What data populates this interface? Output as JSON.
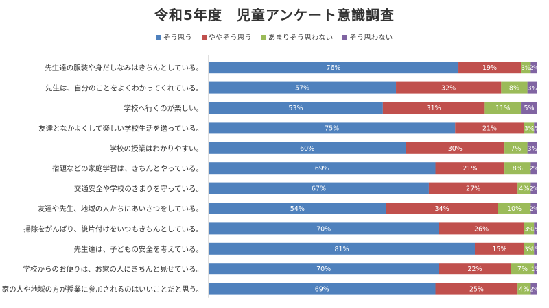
{
  "chart_data": {
    "type": "bar",
    "orientation": "horizontal",
    "stacked": true,
    "percent_stacked": true,
    "title": "令和5年度　児童アンケート意識調査",
    "xlim": [
      0,
      100
    ],
    "legend_position": "top",
    "categories": [
      "先生達の服装や身だしなみはきちんとしている。",
      "先生は、自分のことをよくわかってくれている。",
      "学校へ行くのが楽しい。",
      "友達となかよくして楽しい学校生活を送っている。",
      "学校の授業はわかりやすい。",
      "宿題などの家庭学習は、きちんとやっている。",
      "交通安全や学校のきまりを守っている。",
      "友達や先生、地域の人たちにあいさつをしている。",
      "掃除をがんばり、後片付けをいつもきちんとしている。",
      "先生達は、子どもの安全を考えている。",
      "学校からのお便りは、お家の人にきちんと見せている。",
      "家の人や地域の方が授業に参加されるのはいいことだと思う。"
    ],
    "series": [
      {
        "name": "そう思う",
        "color": "#4f81bd",
        "values": [
          76,
          57,
          53,
          75,
          60,
          69,
          67,
          54,
          70,
          81,
          70,
          69
        ],
        "labels": [
          "76%",
          "57%",
          "53%",
          "75%",
          "60%",
          "69%",
          "67%",
          "54%",
          "70%",
          "81%",
          "70%",
          "69%"
        ]
      },
      {
        "name": "ややそう思う",
        "color": "#c0504d",
        "values": [
          19,
          32,
          31,
          21,
          30,
          21,
          27,
          34,
          26,
          15,
          22,
          25
        ],
        "labels": [
          "19%",
          "32%",
          "31%",
          "21%",
          "30%",
          "21%",
          "27%",
          "34%",
          "26%",
          "15%",
          "22%",
          "25%"
        ]
      },
      {
        "name": "あまりそう思わない",
        "color": "#9bbb59",
        "values": [
          3,
          8,
          11,
          3,
          7,
          8,
          4,
          10,
          3,
          3,
          7,
          4
        ],
        "labels": [
          "3%",
          "8%",
          "11%",
          "3%",
          "7%",
          "8%",
          "4%",
          "10%",
          "3%",
          "3%",
          "7%",
          "4%"
        ]
      },
      {
        "name": "そう思わない",
        "color": "#8064a2",
        "values": [
          2,
          3,
          5,
          1,
          3,
          2,
          2,
          2,
          1,
          1,
          1,
          2
        ],
        "labels": [
          "2%",
          "3%",
          "5%",
          "1%",
          "3%",
          "2%",
          "2%",
          "2%",
          "1%",
          "1%",
          "1%",
          "2%"
        ]
      }
    ]
  }
}
